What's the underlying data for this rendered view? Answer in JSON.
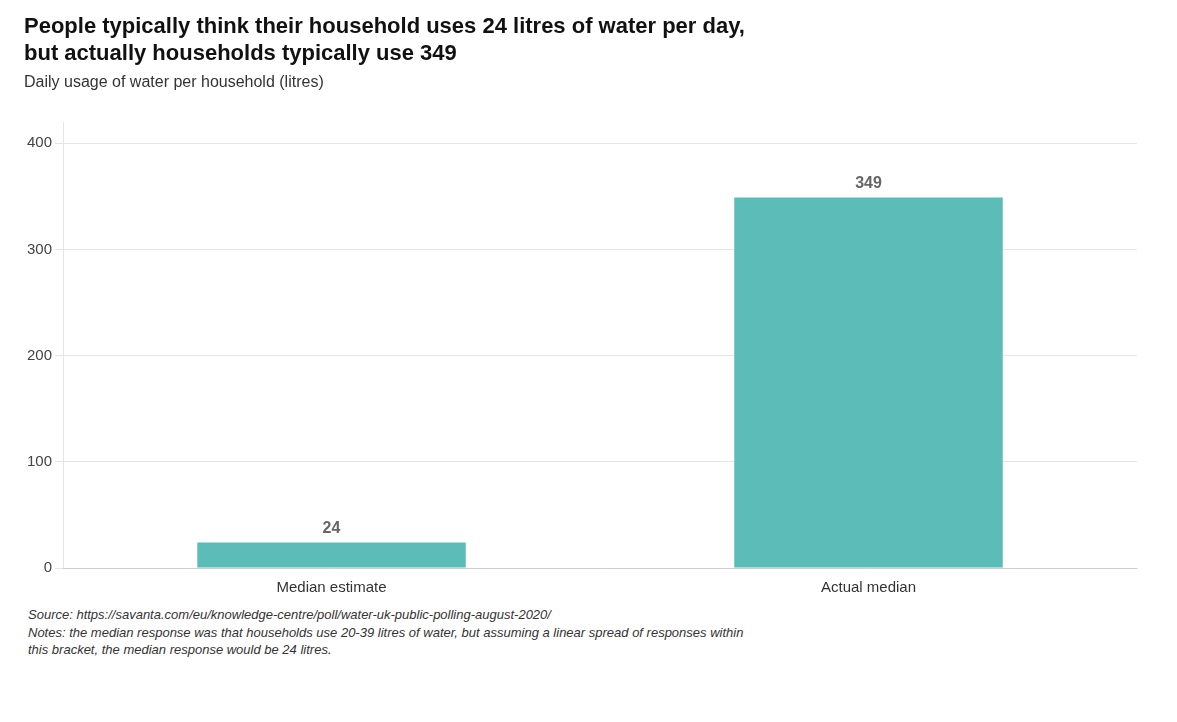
{
  "chart_data": {
    "type": "bar",
    "title": [
      "People typically think their household uses 24 litres of water per day,",
      "but actually households typically use 349"
    ],
    "subtitle": "Daily usage of water per household (litres)",
    "categories": [
      "Median estimate",
      "Actual median"
    ],
    "values": [
      24,
      349
    ],
    "color": "#5bbcb8",
    "ylim": [
      0,
      420
    ],
    "yticks": [
      0,
      100,
      200,
      300,
      400
    ],
    "grid": true,
    "data_labels": true,
    "annotations": [
      "Source: https://savanta.com/eu/knowledge-centre/poll/water-uk-public-polling-august-2020/",
      "Notes: the median response was that households use 20-39 litres of water, but assuming a linear spread of responses within\nthis bracket, the median response would be 24 litres."
    ]
  }
}
